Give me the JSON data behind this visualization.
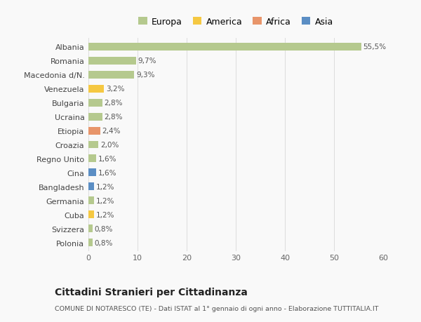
{
  "categories": [
    "Albania",
    "Romania",
    "Macedonia d/N.",
    "Venezuela",
    "Bulgaria",
    "Ucraina",
    "Etiopia",
    "Croazia",
    "Regno Unito",
    "Cina",
    "Bangladesh",
    "Germania",
    "Cuba",
    "Svizzera",
    "Polonia"
  ],
  "values": [
    55.5,
    9.7,
    9.3,
    3.2,
    2.8,
    2.8,
    2.4,
    2.0,
    1.6,
    1.6,
    1.2,
    1.2,
    1.2,
    0.8,
    0.8
  ],
  "labels": [
    "55,5%",
    "9,7%",
    "9,3%",
    "3,2%",
    "2,8%",
    "2,8%",
    "2,4%",
    "2,0%",
    "1,6%",
    "1,6%",
    "1,2%",
    "1,2%",
    "1,2%",
    "0,8%",
    "0,8%"
  ],
  "colors": [
    "#b5c98e",
    "#b5c98e",
    "#b5c98e",
    "#f5c842",
    "#b5c98e",
    "#b5c98e",
    "#e8956a",
    "#b5c98e",
    "#b5c98e",
    "#5b8ec4",
    "#5b8ec4",
    "#b5c98e",
    "#f5c842",
    "#b5c98e",
    "#b5c98e"
  ],
  "legend_labels": [
    "Europa",
    "America",
    "Africa",
    "Asia"
  ],
  "legend_colors": [
    "#b5c98e",
    "#f5c842",
    "#e8956a",
    "#5b8ec4"
  ],
  "title": "Cittadini Stranieri per Cittadinanza",
  "subtitle": "COMUNE DI NOTARESCO (TE) - Dati ISTAT al 1° gennaio di ogni anno - Elaborazione TUTTITALIA.IT",
  "xlim": [
    0,
    60
  ],
  "xticks": [
    0,
    10,
    20,
    30,
    40,
    50,
    60
  ],
  "background_color": "#f9f9f9",
  "grid_color": "#dddddd",
  "bar_height": 0.55
}
